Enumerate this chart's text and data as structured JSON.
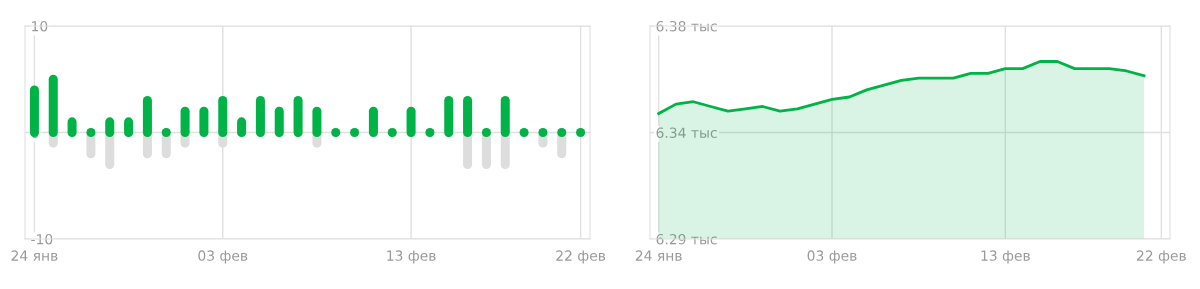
{
  "chart_data": [
    {
      "type": "bar",
      "categories": [
        "24 янв",
        null,
        null,
        null,
        null,
        null,
        null,
        null,
        null,
        null,
        "03 фев",
        null,
        null,
        null,
        null,
        null,
        null,
        null,
        null,
        null,
        "13 фев",
        null,
        null,
        null,
        null,
        null,
        null,
        null,
        null,
        "22 фев"
      ],
      "series": [
        {
          "color": "#dddddd",
          "values": [
            0,
            -1,
            0,
            -2,
            -3,
            0,
            -2,
            -2,
            -1,
            0,
            -1,
            0,
            0,
            0,
            0,
            -1,
            0,
            0,
            0,
            0,
            0,
            0,
            0,
            -3,
            -3,
            -3,
            0,
            -1,
            -2,
            0
          ]
        },
        {
          "color": "#00b347",
          "values": [
            4,
            5,
            1,
            0,
            1,
            1,
            3,
            0,
            2,
            2,
            3,
            1,
            3,
            2,
            3,
            2,
            0,
            0,
            2,
            0,
            2,
            0,
            3,
            3,
            0,
            3,
            0,
            0,
            0,
            0
          ]
        }
      ],
      "ylim": [
        -10,
        10
      ],
      "yticks": [
        -10,
        0,
        10
      ],
      "grid": true
    },
    {
      "type": "area",
      "categories": [
        "24 янв",
        null,
        null,
        null,
        null,
        null,
        null,
        null,
        null,
        null,
        "03 фев",
        null,
        null,
        null,
        null,
        null,
        null,
        null,
        null,
        null,
        "13 фев",
        null,
        null,
        null,
        null,
        null,
        null,
        null,
        null,
        "22 фев"
      ],
      "series": [
        {
          "color": "#00b347",
          "values": [
            6.343,
            6.347,
            6.348,
            6.346,
            6.344,
            6.345,
            6.346,
            6.344,
            6.345,
            6.347,
            6.349,
            6.35,
            6.353,
            6.355,
            6.357,
            6.358,
            6.358,
            6.358,
            6.36,
            6.36,
            6.362,
            6.362,
            6.365,
            6.365,
            6.362,
            6.362,
            6.362,
            6.361,
            6.359,
            null
          ]
        }
      ],
      "ylim": [
        6.29,
        6.38
      ],
      "yticks": [
        {
          "value": 6.29,
          "label": "6.29 тыс"
        },
        {
          "value": 6.335,
          "label": "6.34 тыс"
        },
        {
          "value": 6.38,
          "label": "6.38 тыс"
        }
      ],
      "grid": true
    }
  ]
}
